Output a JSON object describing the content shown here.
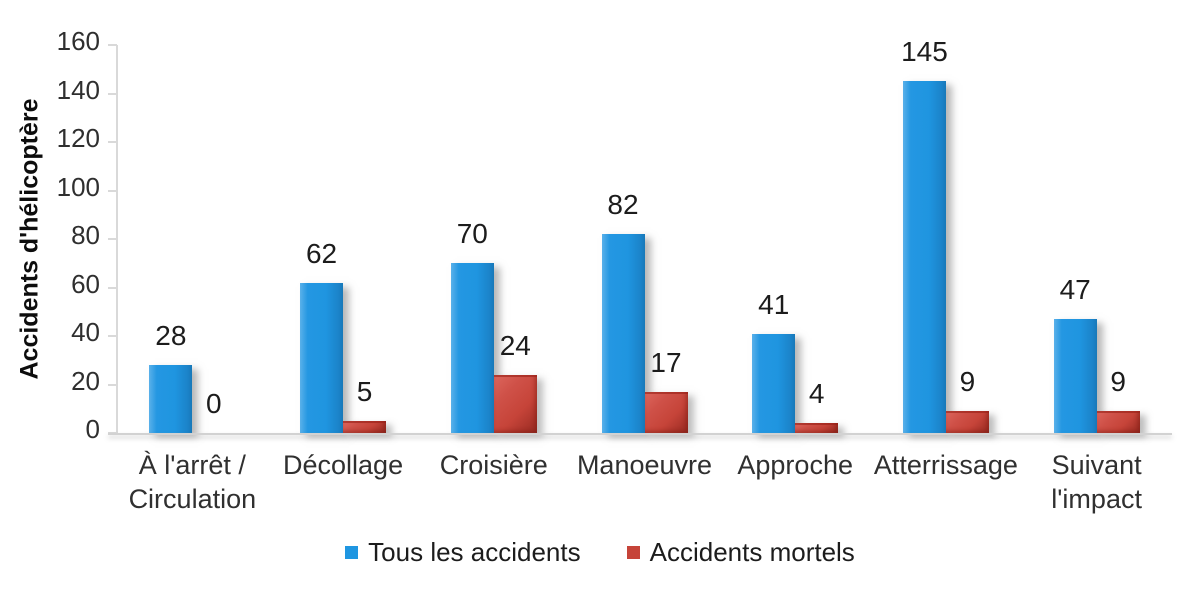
{
  "chart_data": {
    "type": "bar",
    "title": "",
    "ylabel": "Accidents d'hélicoptère",
    "xlabel": "",
    "ylim": [
      0,
      160
    ],
    "yticks": [
      0,
      20,
      40,
      60,
      80,
      100,
      120,
      140,
      160
    ],
    "grid": false,
    "legend_position": "bottom",
    "categories": [
      "À l'arrêt /\nCirculation",
      "Décollage",
      "Croisière",
      "Manoeuvre",
      "Approche",
      "Atterrissage",
      "Suivant\nl'impact"
    ],
    "series": [
      {
        "name": "Tous les accidents",
        "color": "#1F96E1",
        "values": [
          28,
          62,
          70,
          82,
          41,
          145,
          47
        ]
      },
      {
        "name": "Accidents mortels",
        "color": "#C64439",
        "values": [
          0,
          5,
          24,
          17,
          4,
          9,
          9
        ]
      }
    ],
    "axis_color": "#D9D9D9",
    "data_labels_shown": true
  }
}
